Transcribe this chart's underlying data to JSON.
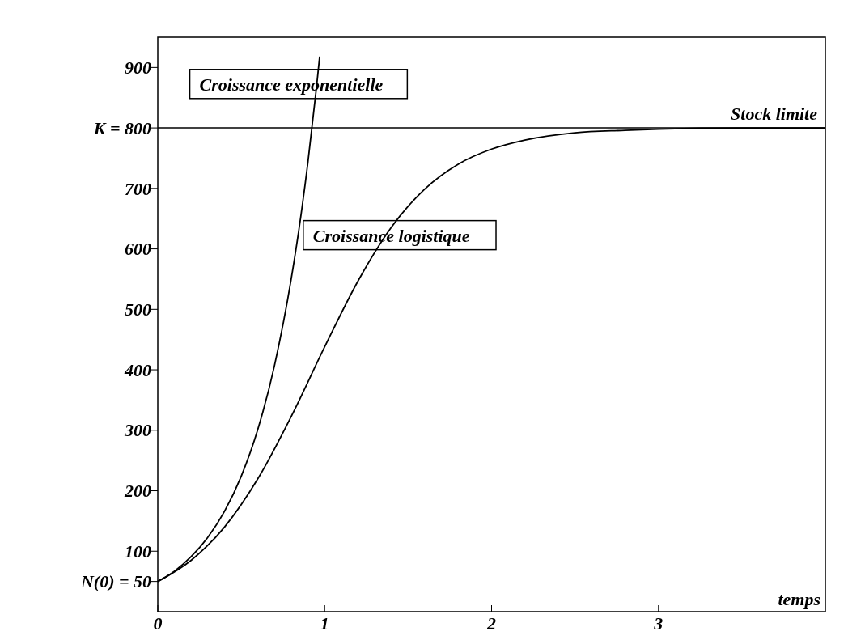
{
  "chart_data": {
    "type": "line",
    "xlabel": "temps",
    "xlim": [
      0,
      4
    ],
    "ylim": [
      0,
      950
    ],
    "xticks": [
      0,
      1,
      2,
      3
    ],
    "yticks": [
      {
        "value": 50,
        "label": "N(0) = 50"
      },
      100,
      200,
      300,
      400,
      500,
      600,
      700,
      {
        "value": 800,
        "label": "K = 800"
      },
      900
    ],
    "series": [
      {
        "name": "Croissance exponentielle",
        "color": "#000000",
        "x": [
          0,
          0.1,
          0.2,
          0.3,
          0.4,
          0.5,
          0.6,
          0.7,
          0.8,
          0.85,
          0.9,
          0.95,
          0.97
        ],
        "values": [
          50,
          67,
          91,
          123,
          166,
          224,
          302,
          408,
          551,
          640,
          744,
          865,
          918
        ]
      },
      {
        "name": "Croissance logistique",
        "color": "#000000",
        "x": [
          0,
          0.2,
          0.4,
          0.6,
          0.8,
          1.0,
          1.2,
          1.4,
          1.6,
          1.8,
          2.0,
          2.2,
          2.5,
          2.8,
          3.0,
          3.5,
          4.0
        ],
        "values": [
          50,
          85,
          140,
          220,
          323,
          438,
          547,
          636,
          699,
          740,
          765,
          780,
          792,
          796,
          798,
          800,
          800
        ]
      }
    ],
    "ref_lines": [
      {
        "axis": "y",
        "value": 800,
        "label": "Stock limite",
        "color": "#000000"
      }
    ],
    "grid": false
  }
}
